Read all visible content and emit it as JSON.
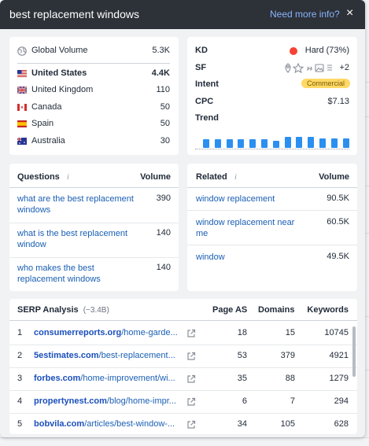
{
  "header": {
    "title": "best replacement windows",
    "info_link": "Need more info?",
    "close": "×"
  },
  "volume": {
    "global_label": "Global Volume",
    "global_value": "5.3K",
    "countries": [
      {
        "name": "United States",
        "value": "4.4K"
      },
      {
        "name": "United Kingdom",
        "value": "110"
      },
      {
        "name": "Canada",
        "value": "50"
      },
      {
        "name": "Spain",
        "value": "50"
      },
      {
        "name": "Australia",
        "value": "30"
      }
    ]
  },
  "metrics": {
    "kd_label": "KD",
    "kd_value": "Hard (73%)",
    "sf_label": "SF",
    "sf_extra": "+2",
    "intent_label": "Intent",
    "intent_value": "Commercial",
    "cpc_label": "CPC",
    "cpc_value": "$7.13",
    "trend_label": "Trend",
    "trend_levels": [
      0.6,
      0.6,
      0.6,
      0.6,
      0.6,
      0.6,
      0.5,
      0.75,
      0.75,
      0.75,
      0.65,
      0.65,
      0.65
    ]
  },
  "questions": {
    "header": "Questions",
    "volume_header": "Volume",
    "rows": [
      {
        "text": "what are the best replacement windows",
        "value": "390"
      },
      {
        "text": "what is the best replacement window",
        "value": "140"
      },
      {
        "text": "who makes the best replacement windows",
        "value": "140"
      }
    ]
  },
  "related": {
    "header": "Related",
    "volume_header": "Volume",
    "rows": [
      {
        "text": "window replacement",
        "value": "90.5K"
      },
      {
        "text": "window replacement near me",
        "value": "60.5K"
      },
      {
        "text": "window",
        "value": "49.5K"
      }
    ]
  },
  "serp": {
    "header": "SERP Analysis",
    "count": "(~3.4B)",
    "col_page_as": "Page AS",
    "col_domains": "Domains",
    "col_keywords": "Keywords",
    "rows": [
      {
        "rank": "1",
        "domain": "consumerreports.org",
        "path": "/home-garde...",
        "page_as": "18",
        "domains": "15",
        "keywords": "10745"
      },
      {
        "rank": "2",
        "domain": "5estimates.com",
        "path": "/best-replacement...",
        "page_as": "53",
        "domains": "379",
        "keywords": "4921"
      },
      {
        "rank": "3",
        "domain": "forbes.com",
        "path": "/home-improvement/wi...",
        "page_as": "35",
        "domains": "88",
        "keywords": "1279"
      },
      {
        "rank": "4",
        "domain": "propertynest.com",
        "path": "/blog/home-impr...",
        "page_as": "6",
        "domains": "7",
        "keywords": "294"
      },
      {
        "rank": "5",
        "domain": "bobvila.com",
        "path": "/articles/best-window-...",
        "page_as": "34",
        "domains": "105",
        "keywords": "628"
      }
    ]
  }
}
